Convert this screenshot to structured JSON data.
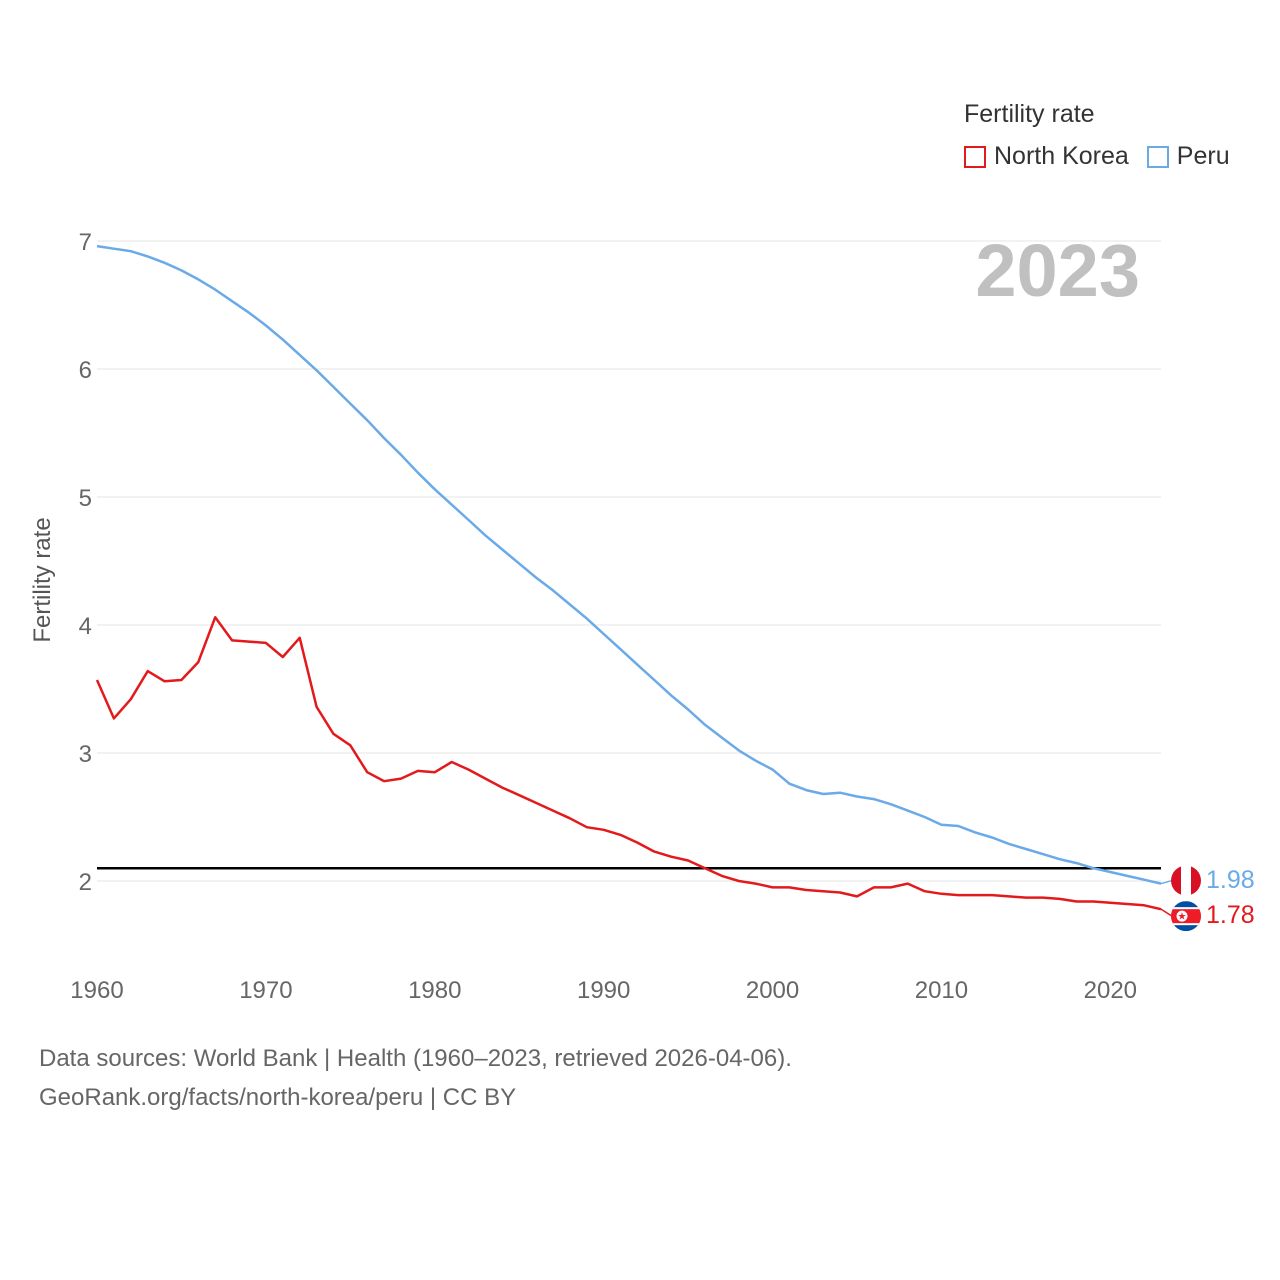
{
  "legend": {
    "title": "Fertility rate",
    "items": [
      {
        "name": "North Korea",
        "color": "#e31a1c"
      },
      {
        "name": "Peru",
        "color": "#6aaae8"
      }
    ]
  },
  "year_label": "2023",
  "footer": {
    "line1": "Data sources: World Bank | Health (1960–2023, retrieved 2026-04-06).",
    "line2": "GeoRank.org/facts/north-korea/peru | CC BY"
  },
  "end_labels": {
    "peru": "1.98",
    "north_korea": "1.78"
  },
  "chart_data": {
    "type": "line",
    "title": "",
    "xlabel": "",
    "ylabel": "Fertility rate",
    "xlim": [
      1960,
      2023
    ],
    "ylim": [
      1.4,
      7.1
    ],
    "yticks": [
      2,
      3,
      4,
      5,
      6,
      7
    ],
    "xticks": [
      1960,
      1970,
      1980,
      1990,
      2000,
      2010,
      2020
    ],
    "reference_line": {
      "y": 2.1,
      "color": "#000000"
    },
    "x": [
      1960,
      1961,
      1962,
      1963,
      1964,
      1965,
      1966,
      1967,
      1968,
      1969,
      1970,
      1971,
      1972,
      1973,
      1974,
      1975,
      1976,
      1977,
      1978,
      1979,
      1980,
      1981,
      1982,
      1983,
      1984,
      1985,
      1986,
      1987,
      1988,
      1989,
      1990,
      1991,
      1992,
      1993,
      1994,
      1995,
      1996,
      1997,
      1998,
      1999,
      2000,
      2001,
      2002,
      2003,
      2004,
      2005,
      2006,
      2007,
      2008,
      2009,
      2010,
      2011,
      2012,
      2013,
      2014,
      2015,
      2016,
      2017,
      2018,
      2019,
      2020,
      2021,
      2022,
      2023
    ],
    "series": [
      {
        "name": "North Korea",
        "color": "#e31a1c",
        "values": [
          3.57,
          3.27,
          3.42,
          3.64,
          3.56,
          3.57,
          3.71,
          4.06,
          3.88,
          3.87,
          3.86,
          3.75,
          3.9,
          3.36,
          3.15,
          3.06,
          2.85,
          2.78,
          2.8,
          2.86,
          2.85,
          2.93,
          2.87,
          2.8,
          2.73,
          2.67,
          2.61,
          2.55,
          2.49,
          2.42,
          2.4,
          2.36,
          2.3,
          2.23,
          2.19,
          2.16,
          2.1,
          2.04,
          2.0,
          1.98,
          1.95,
          1.95,
          1.93,
          1.92,
          1.91,
          1.88,
          1.95,
          1.95,
          1.98,
          1.92,
          1.9,
          1.89,
          1.89,
          1.89,
          1.88,
          1.87,
          1.87,
          1.86,
          1.84,
          1.84,
          1.83,
          1.82,
          1.81,
          1.78
        ]
      },
      {
        "name": "Peru",
        "color": "#6aaae8",
        "values": [
          6.96,
          6.94,
          6.92,
          6.88,
          6.83,
          6.77,
          6.7,
          6.62,
          6.53,
          6.44,
          6.34,
          6.23,
          6.11,
          5.99,
          5.86,
          5.73,
          5.6,
          5.46,
          5.33,
          5.19,
          5.06,
          4.94,
          4.82,
          4.7,
          4.59,
          4.48,
          4.37,
          4.27,
          4.16,
          4.05,
          3.93,
          3.81,
          3.69,
          3.57,
          3.45,
          3.34,
          3.22,
          3.12,
          3.02,
          2.94,
          2.87,
          2.76,
          2.71,
          2.68,
          2.69,
          2.66,
          2.64,
          2.6,
          2.55,
          2.5,
          2.44,
          2.43,
          2.38,
          2.34,
          2.29,
          2.25,
          2.21,
          2.17,
          2.14,
          2.1,
          2.07,
          2.04,
          2.01,
          1.98
        ]
      }
    ]
  }
}
